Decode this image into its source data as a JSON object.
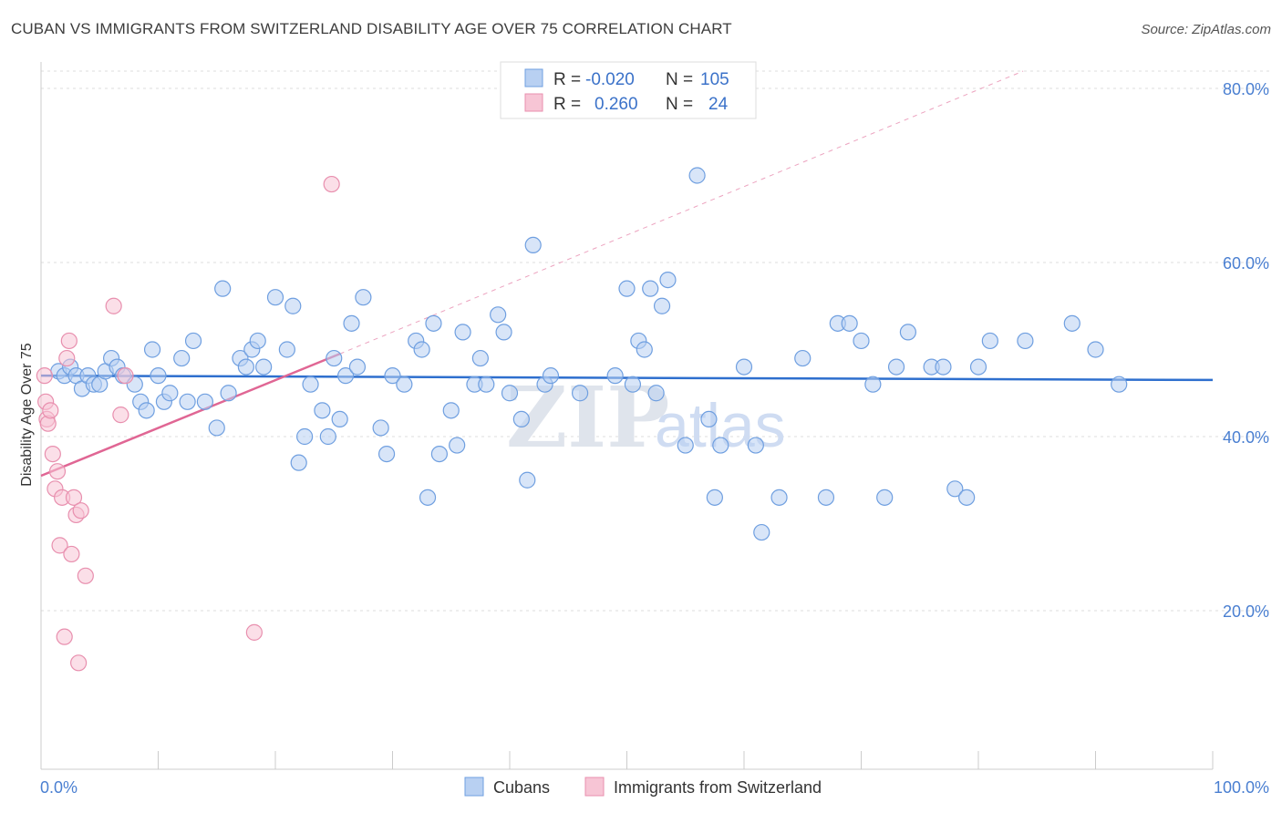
{
  "title": "CUBAN VS IMMIGRANTS FROM SWITZERLAND DISABILITY AGE OVER 75 CORRELATION CHART",
  "source": "Source: ZipAtlas.com",
  "watermark": {
    "zip": "ZIP",
    "atlas": "atlas"
  },
  "chart_data": {
    "type": "scatter",
    "title": "CUBAN VS IMMIGRANTS FROM SWITZERLAND DISABILITY AGE OVER 75 CORRELATION CHART",
    "xlabel": "",
    "ylabel": "Disability Age Over 75",
    "xlim": [
      0,
      100
    ],
    "ylim": [
      0,
      85
    ],
    "x_tick_labels": [
      "0.0%",
      "100.0%"
    ],
    "y_ticks": [
      20,
      40,
      60,
      80
    ],
    "y_tick_labels": [
      "20.0%",
      "40.0%",
      "60.0%",
      "80.0%"
    ],
    "grid": true,
    "legend_position": "top-center",
    "stats_legend": [
      {
        "r_label": "R =",
        "r_value": "-0.020",
        "n_label": "N =",
        "n_value": "105"
      },
      {
        "r_label": "R =",
        "r_value": "0.260",
        "n_label": "N =",
        "n_value": "24"
      }
    ],
    "series": [
      {
        "name": "Cubans",
        "color": "#6f9fe0",
        "fill": "#b8d0f2",
        "trend": {
          "x0": 0,
          "y0": 47.0,
          "x1": 100,
          "y1": 46.5,
          "color": "#2e6fce"
        },
        "points": [
          [
            1.5,
            47.5
          ],
          [
            2,
            47
          ],
          [
            2.5,
            48
          ],
          [
            3,
            47
          ],
          [
            3.5,
            45.5
          ],
          [
            4,
            47
          ],
          [
            4.5,
            46
          ],
          [
            5,
            46
          ],
          [
            5.5,
            47.5
          ],
          [
            6,
            49
          ],
          [
            6.5,
            48
          ],
          [
            7,
            47
          ],
          [
            8,
            46
          ],
          [
            8.5,
            44
          ],
          [
            9,
            43
          ],
          [
            9.5,
            50
          ],
          [
            10,
            47
          ],
          [
            10.5,
            44
          ],
          [
            11,
            45
          ],
          [
            12,
            49
          ],
          [
            12.5,
            44
          ],
          [
            13,
            51
          ],
          [
            14,
            44
          ],
          [
            15,
            41
          ],
          [
            15.5,
            57
          ],
          [
            16,
            45
          ],
          [
            17,
            49
          ],
          [
            17.5,
            48
          ],
          [
            18,
            50
          ],
          [
            18.5,
            51
          ],
          [
            19,
            48
          ],
          [
            20,
            56
          ],
          [
            21,
            50
          ],
          [
            21.5,
            55
          ],
          [
            22,
            37
          ],
          [
            22.5,
            40
          ],
          [
            23,
            46
          ],
          [
            24,
            43
          ],
          [
            24.5,
            40
          ],
          [
            25,
            49
          ],
          [
            25.5,
            42
          ],
          [
            26,
            47
          ],
          [
            26.5,
            53
          ],
          [
            27,
            48
          ],
          [
            27.5,
            56
          ],
          [
            29,
            41
          ],
          [
            29.5,
            38
          ],
          [
            30,
            47
          ],
          [
            31,
            46
          ],
          [
            32,
            51
          ],
          [
            32.5,
            50
          ],
          [
            33,
            33
          ],
          [
            33.5,
            53
          ],
          [
            34,
            38
          ],
          [
            35,
            43
          ],
          [
            35.5,
            39
          ],
          [
            36,
            52
          ],
          [
            37,
            46
          ],
          [
            37.5,
            49
          ],
          [
            38,
            46
          ],
          [
            39,
            54
          ],
          [
            39.5,
            52
          ],
          [
            40,
            45
          ],
          [
            41,
            42
          ],
          [
            41.5,
            35
          ],
          [
            42,
            62
          ],
          [
            43,
            46
          ],
          [
            43.5,
            47
          ],
          [
            46,
            45
          ],
          [
            49,
            47
          ],
          [
            50,
            57
          ],
          [
            50.5,
            46
          ],
          [
            51,
            51
          ],
          [
            51.5,
            50
          ],
          [
            52,
            57
          ],
          [
            52.5,
            45
          ],
          [
            53,
            55
          ],
          [
            53.5,
            58
          ],
          [
            55,
            39
          ],
          [
            56,
            70
          ],
          [
            57,
            42
          ],
          [
            57.5,
            33
          ],
          [
            58,
            39
          ],
          [
            60,
            48
          ],
          [
            61,
            39
          ],
          [
            61.5,
            29
          ],
          [
            63,
            33
          ],
          [
            65,
            49
          ],
          [
            67,
            33
          ],
          [
            68,
            53
          ],
          [
            69,
            53
          ],
          [
            70,
            51
          ],
          [
            71,
            46
          ],
          [
            72,
            33
          ],
          [
            73,
            48
          ],
          [
            74,
            52
          ],
          [
            76,
            48
          ],
          [
            77,
            48
          ],
          [
            78,
            34
          ],
          [
            79,
            33
          ],
          [
            80,
            48
          ],
          [
            81,
            51
          ],
          [
            84,
            51
          ],
          [
            88,
            53
          ],
          [
            90,
            50
          ],
          [
            92,
            46
          ]
        ]
      },
      {
        "name": "Immigrants from Switzerland",
        "color": "#e88fae",
        "fill": "#f7c5d5",
        "trend": {
          "x0": 0,
          "y0": 35.5,
          "x1": 25.5,
          "y1": 49.5,
          "color": "#e06694",
          "dash_to": {
            "x": 100,
            "y": 91
          }
        },
        "points": [
          [
            0.3,
            47
          ],
          [
            0.4,
            44
          ],
          [
            0.5,
            42
          ],
          [
            0.6,
            41.5
          ],
          [
            0.8,
            43
          ],
          [
            1,
            38
          ],
          [
            1.2,
            34
          ],
          [
            1.4,
            36
          ],
          [
            1.6,
            27.5
          ],
          [
            1.8,
            33
          ],
          [
            2,
            17
          ],
          [
            2.2,
            49
          ],
          [
            2.4,
            51
          ],
          [
            2.6,
            26.5
          ],
          [
            2.8,
            33
          ],
          [
            3,
            31
          ],
          [
            3.2,
            14
          ],
          [
            3.4,
            31.5
          ],
          [
            3.8,
            24
          ],
          [
            6.2,
            55
          ],
          [
            6.8,
            42.5
          ],
          [
            18.2,
            17.5
          ],
          [
            24.8,
            69
          ],
          [
            7.2,
            47
          ]
        ]
      }
    ]
  },
  "bottom_legend": [
    "Cubans",
    "Immigrants from Switzerland"
  ],
  "colors": {
    "blue": "#2e6fce",
    "pink": "#e06694",
    "grid": "#dddddd",
    "tick": "#4a7fd1"
  }
}
